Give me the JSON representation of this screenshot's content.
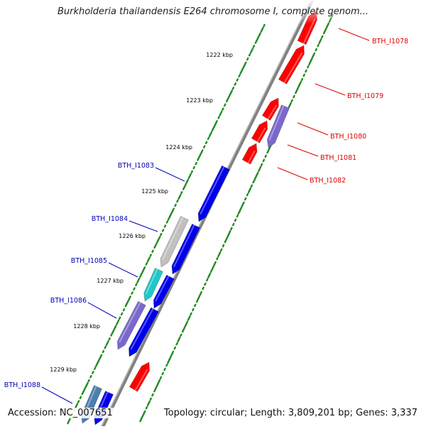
{
  "title": "Burkholderia thailandensis E264 chromosome I, complete genom...",
  "accession": "Accession: NC_007651",
  "topology": "Topology: circular; Length: 3,809,201 bp; Genes: 3,337",
  "kbp_labels": [
    "1222 kbp",
    "1223 kbp",
    "1224 kbp",
    "1225 kbp",
    "1226 kbp",
    "1227 kbp",
    "1228 kbp",
    "1229 kbp"
  ],
  "gene_labels": {
    "forward": [
      "BTH_I1078",
      "BTH_I1079",
      "BTH_I1080",
      "BTH_I1081",
      "BTH_I1082"
    ],
    "reverse": [
      "BTH_I1083",
      "BTH_I1084",
      "BTH_I1085",
      "BTH_I1086",
      "BTH_I1088"
    ]
  },
  "colors": {
    "forward_strand": "#ff0000",
    "reverse_strand": "#0000ee",
    "cog_purple": "#7b68cc",
    "cog_gray": "#c0c0c0",
    "cog_cyan": "#20c8c8",
    "cog_steelblue": "#4a7fb0",
    "backbone": "#808080",
    "gc_dots": "#228b22",
    "forward_label": "#dd0000",
    "reverse_label": "#0000bb"
  }
}
